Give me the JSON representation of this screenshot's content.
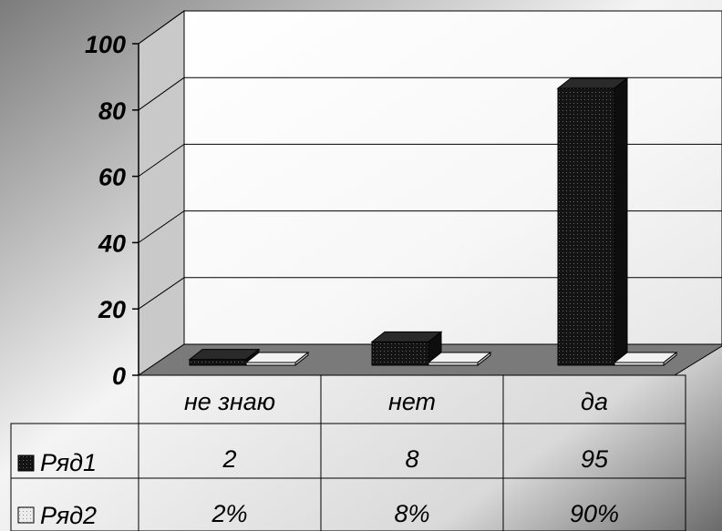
{
  "chart_data": {
    "type": "bar",
    "categories": [
      "не знаю",
      "нет",
      "да"
    ],
    "series": [
      {
        "name": "Ряд1",
        "values": [
          2,
          8,
          95
        ],
        "labels": [
          "2",
          "8",
          "95"
        ]
      },
      {
        "name": "Ряд2",
        "values": [
          0.02,
          0.08,
          0.9
        ],
        "labels": [
          "2%",
          "8%",
          "90%"
        ]
      }
    ],
    "y_ticks": [
      "0",
      "20",
      "40",
      "60",
      "80",
      "100"
    ],
    "ylim": [
      0,
      100
    ],
    "grid": true,
    "legend": "data table",
    "colors": {
      "series1": "#000000",
      "series2": "#e8e8e8",
      "floor": "#7a7a7a"
    }
  }
}
